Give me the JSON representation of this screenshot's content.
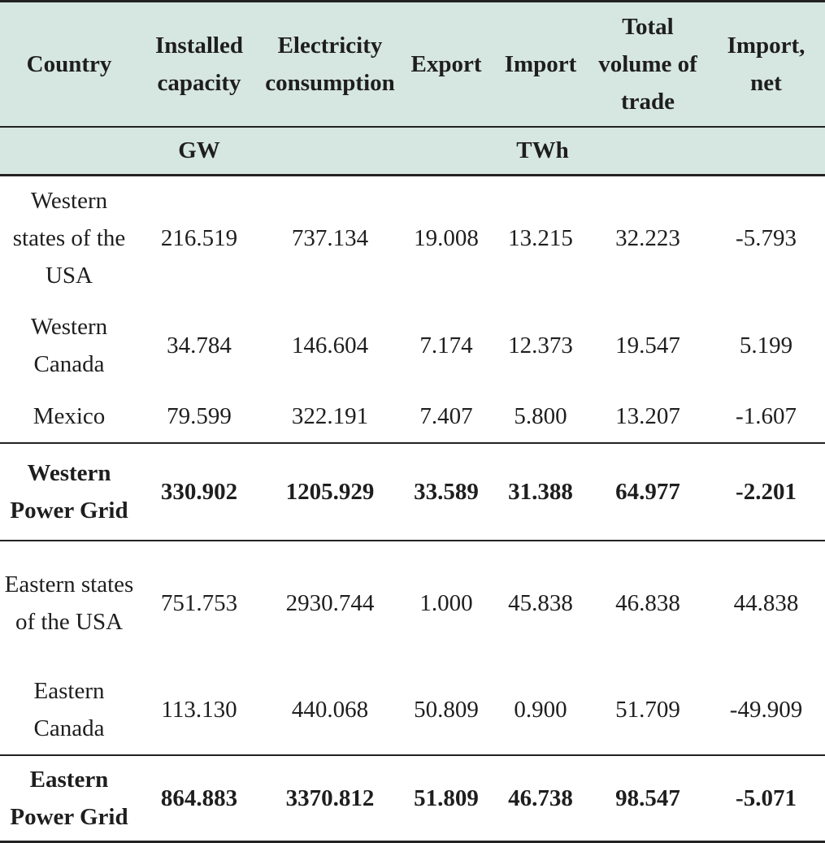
{
  "table": {
    "headers": [
      "Country",
      "Installed capacity",
      "Electricity consumption",
      "Export",
      "Import",
      "Total volume of trade",
      "Import, net"
    ],
    "units": {
      "capacity": "GW",
      "energy": "TWh"
    },
    "rows": [
      {
        "country": "Western states of the USA",
        "installed_capacity": "216.519",
        "electricity_consumption": "737.134",
        "export": "19.008",
        "import": "13.215",
        "total_trade": "32.223",
        "import_net": "-5.793",
        "bold": false
      },
      {
        "country": "Western Canada",
        "installed_capacity": "34.784",
        "electricity_consumption": "146.604",
        "export": "7.174",
        "import": "12.373",
        "total_trade": "19.547",
        "import_net": "5.199",
        "bold": false
      },
      {
        "country": "Mexico",
        "installed_capacity": "79.599",
        "electricity_consumption": "322.191",
        "export": "7.407",
        "import": "5.800",
        "total_trade": "13.207",
        "import_net": "-1.607",
        "bold": false
      },
      {
        "country": "Western Power Grid",
        "installed_capacity": "330.902",
        "electricity_consumption": "1205.929",
        "export": "33.589",
        "import": "31.388",
        "total_trade": "64.977",
        "import_net": "-2.201",
        "bold": true
      },
      {
        "country": "Eastern states of the USA",
        "installed_capacity": "751.753",
        "electricity_consumption": "2930.744",
        "export": "1.000",
        "import": "45.838",
        "total_trade": "46.838",
        "import_net": "44.838",
        "bold": false
      },
      {
        "country": "Eastern Canada",
        "installed_capacity": "113.130",
        "electricity_consumption": "440.068",
        "export": "50.809",
        "import": "0.900",
        "total_trade": "51.709",
        "import_net": "-49.909",
        "bold": false
      },
      {
        "country": "Eastern Power Grid",
        "installed_capacity": "864.883",
        "electricity_consumption": "3370.812",
        "export": "51.809",
        "import": "46.738",
        "total_trade": "98.547",
        "import_net": "-5.071",
        "bold": true
      }
    ]
  },
  "colors": {
    "header_bg": "#d6e6e1",
    "rule": "#222222",
    "text": "#1e1e1e"
  }
}
